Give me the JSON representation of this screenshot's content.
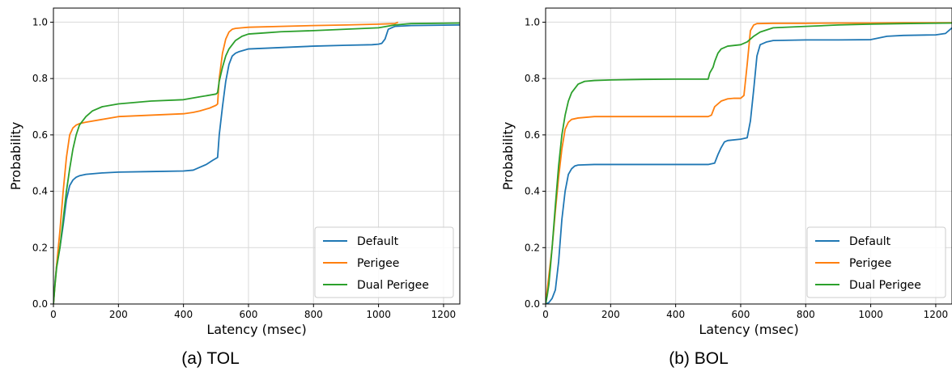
{
  "chart_data": [
    {
      "type": "line",
      "caption": "(a)    TOL",
      "xlabel": "Latency (msec)",
      "ylabel": "Probability",
      "xlim": [
        0,
        1250
      ],
      "ylim": [
        0,
        1.05
      ],
      "xticks": [
        0,
        200,
        400,
        600,
        800,
        1000,
        1200
      ],
      "yticks": [
        0.0,
        0.2,
        0.4,
        0.6,
        0.8,
        1.0
      ],
      "xtick_labels": [
        "0",
        "200",
        "400",
        "600",
        "800",
        "1000",
        "1200"
      ],
      "ytick_labels": [
        "0.0",
        "0.2",
        "0.4",
        "0.6",
        "0.8",
        "1.0"
      ],
      "grid": true,
      "legend_position": "lower-right",
      "series": [
        {
          "name": "Default",
          "color": "#1f77b4",
          "x": [
            0,
            5,
            10,
            20,
            30,
            40,
            50,
            60,
            70,
            80,
            100,
            150,
            200,
            300,
            400,
            430,
            450,
            470,
            490,
            505,
            510,
            520,
            530,
            540,
            550,
            560,
            570,
            600,
            700,
            800,
            900,
            980,
            1000,
            1010,
            1020,
            1030,
            1050,
            1100,
            1250
          ],
          "y": [
            0.0,
            0.08,
            0.14,
            0.2,
            0.28,
            0.37,
            0.42,
            0.44,
            0.45,
            0.455,
            0.46,
            0.465,
            0.468,
            0.47,
            0.472,
            0.475,
            0.485,
            0.495,
            0.51,
            0.52,
            0.6,
            0.7,
            0.79,
            0.85,
            0.88,
            0.89,
            0.895,
            0.905,
            0.91,
            0.915,
            0.918,
            0.92,
            0.922,
            0.925,
            0.94,
            0.975,
            0.985,
            0.988,
            0.99
          ]
        },
        {
          "name": "Perigee",
          "color": "#ff7f0e",
          "x": [
            0,
            5,
            10,
            20,
            30,
            40,
            50,
            60,
            70,
            80,
            100,
            150,
            200,
            300,
            400,
            430,
            450,
            480,
            500,
            505,
            510,
            520,
            530,
            540,
            550,
            560,
            580,
            600,
            700,
            800,
            900,
            1000,
            1050,
            1060
          ],
          "y": [
            0.0,
            0.07,
            0.14,
            0.26,
            0.4,
            0.52,
            0.6,
            0.625,
            0.635,
            0.64,
            0.645,
            0.655,
            0.665,
            0.67,
            0.675,
            0.68,
            0.685,
            0.695,
            0.705,
            0.71,
            0.8,
            0.89,
            0.94,
            0.965,
            0.975,
            0.978,
            0.98,
            0.982,
            0.985,
            0.988,
            0.99,
            0.993,
            0.995,
            1.0
          ]
        },
        {
          "name": "Dual Perigee",
          "color": "#2ca02c",
          "x": [
            0,
            5,
            10,
            20,
            30,
            40,
            50,
            60,
            70,
            80,
            100,
            120,
            150,
            200,
            250,
            300,
            400,
            450,
            500,
            505,
            510,
            520,
            530,
            540,
            550,
            560,
            580,
            600,
            650,
            700,
            800,
            900,
            1000,
            1050,
            1100,
            1250
          ],
          "y": [
            0.0,
            0.07,
            0.13,
            0.2,
            0.3,
            0.4,
            0.48,
            0.55,
            0.6,
            0.635,
            0.665,
            0.685,
            0.7,
            0.71,
            0.715,
            0.72,
            0.725,
            0.735,
            0.745,
            0.75,
            0.79,
            0.84,
            0.88,
            0.905,
            0.92,
            0.935,
            0.95,
            0.958,
            0.962,
            0.966,
            0.97,
            0.975,
            0.98,
            0.99,
            0.995,
            0.997
          ]
        }
      ]
    },
    {
      "type": "line",
      "caption": "(b)    BOL",
      "xlabel": "Latency (msec)",
      "ylabel": "Probability",
      "xlim": [
        0,
        1250
      ],
      "ylim": [
        0,
        1.05
      ],
      "xticks": [
        0,
        200,
        400,
        600,
        800,
        1000,
        1200
      ],
      "yticks": [
        0.0,
        0.2,
        0.4,
        0.6,
        0.8,
        1.0
      ],
      "xtick_labels": [
        "0",
        "200",
        "400",
        "600",
        "800",
        "1000",
        "1200"
      ],
      "ytick_labels": [
        "0.0",
        "0.2",
        "0.4",
        "0.6",
        "0.8",
        "1.0"
      ],
      "grid": true,
      "legend_position": "lower-right",
      "series": [
        {
          "name": "Default",
          "color": "#1f77b4",
          "x": [
            0,
            10,
            20,
            30,
            40,
            50,
            60,
            70,
            80,
            90,
            100,
            150,
            200,
            300,
            400,
            500,
            520,
            530,
            540,
            550,
            560,
            600,
            620,
            630,
            640,
            650,
            660,
            680,
            700,
            800,
            900,
            1000,
            1050,
            1100,
            1200,
            1230,
            1250
          ],
          "y": [
            0.0,
            0.005,
            0.02,
            0.05,
            0.15,
            0.3,
            0.4,
            0.46,
            0.48,
            0.49,
            0.493,
            0.495,
            0.495,
            0.495,
            0.495,
            0.495,
            0.5,
            0.53,
            0.555,
            0.575,
            0.58,
            0.585,
            0.59,
            0.65,
            0.76,
            0.88,
            0.92,
            0.93,
            0.935,
            0.937,
            0.937,
            0.938,
            0.95,
            0.953,
            0.955,
            0.96,
            0.98
          ]
        },
        {
          "name": "Perigee",
          "color": "#ff7f0e",
          "x": [
            0,
            5,
            10,
            20,
            30,
            40,
            50,
            60,
            70,
            80,
            100,
            150,
            200,
            300,
            400,
            500,
            510,
            520,
            540,
            560,
            580,
            600,
            610,
            620,
            630,
            640,
            650,
            700,
            800,
            900,
            1000,
            1100,
            1250
          ],
          "y": [
            0.0,
            0.05,
            0.1,
            0.2,
            0.33,
            0.45,
            0.55,
            0.62,
            0.645,
            0.655,
            0.66,
            0.665,
            0.665,
            0.665,
            0.665,
            0.665,
            0.67,
            0.7,
            0.72,
            0.728,
            0.73,
            0.73,
            0.74,
            0.85,
            0.97,
            0.99,
            0.995,
            0.996,
            0.996,
            0.997,
            0.997,
            0.998,
            0.998
          ]
        },
        {
          "name": "Dual Perigee",
          "color": "#2ca02c",
          "x": [
            0,
            5,
            10,
            20,
            30,
            40,
            50,
            60,
            70,
            80,
            100,
            120,
            150,
            200,
            300,
            400,
            500,
            505,
            510,
            515,
            520,
            530,
            540,
            560,
            600,
            620,
            640,
            660,
            700,
            800,
            900,
            1000,
            1100,
            1250
          ],
          "y": [
            0.0,
            0.03,
            0.07,
            0.2,
            0.35,
            0.49,
            0.6,
            0.67,
            0.72,
            0.75,
            0.78,
            0.79,
            0.793,
            0.795,
            0.797,
            0.798,
            0.798,
            0.82,
            0.83,
            0.84,
            0.86,
            0.89,
            0.905,
            0.915,
            0.92,
            0.93,
            0.95,
            0.965,
            0.98,
            0.985,
            0.99,
            0.993,
            0.995,
            0.997
          ]
        }
      ]
    }
  ]
}
